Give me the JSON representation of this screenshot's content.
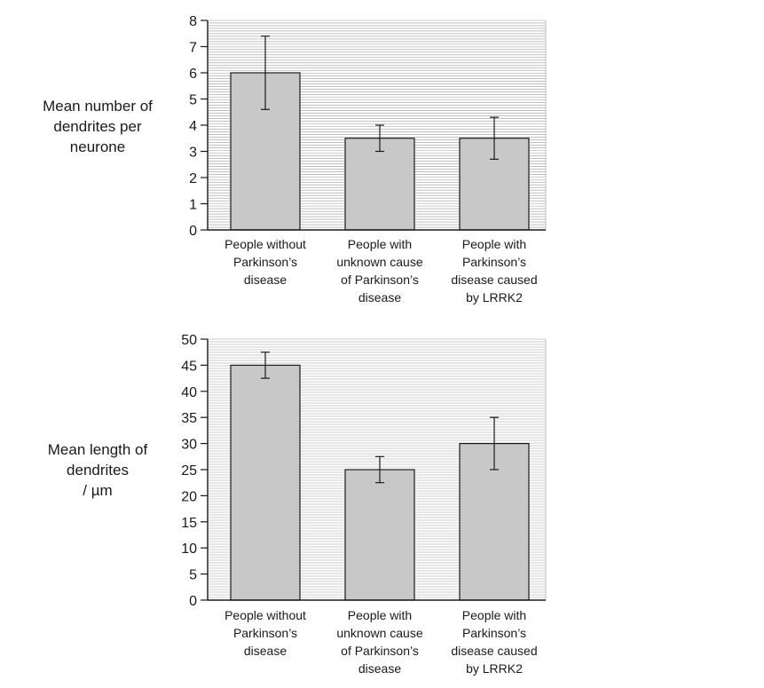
{
  "chart_data": [
    {
      "type": "bar",
      "title": "",
      "ylabel": [
        "Mean number of",
        "dendrites per",
        "neurone"
      ],
      "xlabel": "",
      "ylim": [
        0,
        8
      ],
      "yticks": [
        0,
        1,
        2,
        3,
        4,
        5,
        6,
        7,
        8
      ],
      "categories": [
        [
          "People without",
          "Parkinson’s",
          "disease"
        ],
        [
          "People with",
          "unknown cause",
          "of Parkinson’s",
          "disease"
        ],
        [
          "People with",
          "Parkinson’s",
          "disease caused",
          "by LRRK2"
        ]
      ],
      "values": [
        6,
        3.5,
        3.5
      ],
      "error_low": [
        4.6,
        3.0,
        2.7
      ],
      "error_high": [
        7.4,
        4.0,
        4.3
      ],
      "grid": true,
      "bar_color": "#c8c8c8"
    },
    {
      "type": "bar",
      "title": "",
      "ylabel": [
        "Mean length of",
        "dendrites",
        "/ µm"
      ],
      "xlabel": "",
      "ylim": [
        0,
        50
      ],
      "yticks": [
        0,
        5,
        10,
        15,
        20,
        25,
        30,
        35,
        40,
        45,
        50
      ],
      "categories": [
        [
          "People without",
          "Parkinson’s",
          "disease"
        ],
        [
          "People with",
          "unknown cause",
          "of Parkinson’s",
          "disease"
        ],
        [
          "People with",
          "Parkinson’s",
          "disease caused",
          "by LRRK2"
        ]
      ],
      "values": [
        45,
        25,
        30
      ],
      "error_low": [
        42.5,
        22.5,
        25
      ],
      "error_high": [
        47.5,
        27.5,
        35
      ],
      "grid": true,
      "bar_color": "#c8c8c8"
    }
  ]
}
